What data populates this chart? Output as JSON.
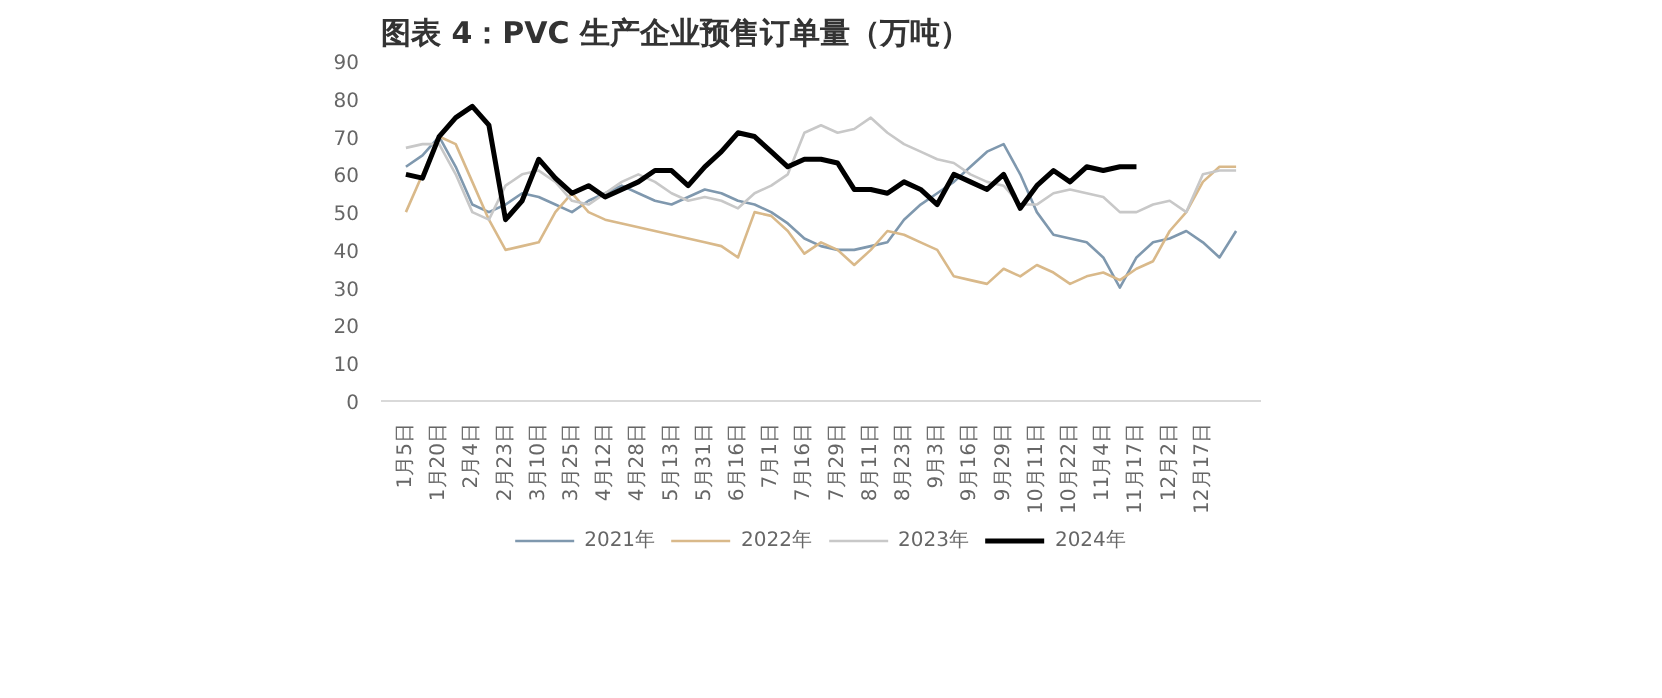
{
  "chart_data": {
    "type": "line",
    "title": "图表 4：PVC 生产企业预售订单量（万吨）",
    "categories": [
      "1月5日",
      null,
      "1月20日",
      null,
      "2月4日",
      null,
      "2月23日",
      null,
      "3月10日",
      null,
      "3月25日",
      null,
      "4月12日",
      null,
      "4月28日",
      null,
      "5月13日",
      null,
      "5月31日",
      null,
      "6月16日",
      null,
      "7月1日",
      null,
      "7月16日",
      null,
      "7月29日",
      null,
      "8月11日",
      null,
      "8月23日",
      null,
      "9月3日",
      null,
      "9月16日",
      null,
      "9月29日",
      null,
      "10月11日",
      null,
      "10月22日",
      null,
      "11月4日",
      null,
      "11月17日",
      null,
      "12月2日",
      null,
      "12月17日",
      null,
      null
    ],
    "series": [
      {
        "name": "2021年",
        "color": "#7f98ae",
        "values": [
          62,
          65,
          70,
          62,
          52,
          50,
          52,
          55,
          54,
          52,
          50,
          53,
          55,
          57,
          55,
          53,
          52,
          54,
          56,
          55,
          53,
          52,
          50,
          47,
          43,
          41,
          40,
          40,
          41,
          42,
          48,
          52,
          55,
          58,
          62,
          66,
          68,
          60,
          50,
          44,
          43,
          42,
          38,
          30,
          38,
          42,
          43,
          45,
          42,
          38,
          45
        ]
      },
      {
        "name": "2022年",
        "color": "#d9b98a",
        "values": [
          50,
          60,
          70,
          68,
          58,
          48,
          40,
          41,
          42,
          50,
          55,
          50,
          48,
          47,
          46,
          45,
          44,
          43,
          42,
          41,
          38,
          50,
          49,
          45,
          39,
          42,
          40,
          36,
          40,
          45,
          44,
          42,
          40,
          33,
          32,
          31,
          35,
          33,
          36,
          34,
          31,
          33,
          34,
          32,
          35,
          37,
          45,
          50,
          58,
          62,
          62
        ]
      },
      {
        "name": "2023年",
        "color": "#c8c8c8",
        "values": [
          67,
          68,
          68,
          60,
          50,
          48,
          57,
          60,
          61,
          58,
          53,
          52,
          55,
          58,
          60,
          58,
          55,
          53,
          54,
          53,
          51,
          55,
          57,
          60,
          71,
          73,
          71,
          72,
          75,
          71,
          68,
          66,
          64,
          63,
          60,
          58,
          57,
          52,
          52,
          55,
          56,
          55,
          54,
          50,
          50,
          52,
          53,
          50,
          60,
          61,
          61
        ]
      },
      {
        "name": "2024年",
        "color": "#000000",
        "values": [
          60,
          59,
          70,
          75,
          78,
          73,
          48,
          53,
          64,
          59,
          55,
          57,
          54,
          56,
          58,
          61,
          61,
          57,
          62,
          66,
          71,
          70,
          66,
          62,
          64,
          64,
          63,
          56,
          56,
          55,
          58,
          56,
          52,
          60,
          58,
          56,
          60,
          51,
          57,
          61,
          58,
          62,
          61,
          62,
          62,
          null,
          null,
          null,
          null,
          null,
          null
        ]
      }
    ],
    "ylim": [
      0,
      90
    ],
    "yticks": [
      0,
      10,
      20,
      30,
      40,
      50,
      60,
      70,
      80,
      90
    ],
    "grid": false,
    "legend": "bottom",
    "marker": "none",
    "line_style": "solid"
  }
}
